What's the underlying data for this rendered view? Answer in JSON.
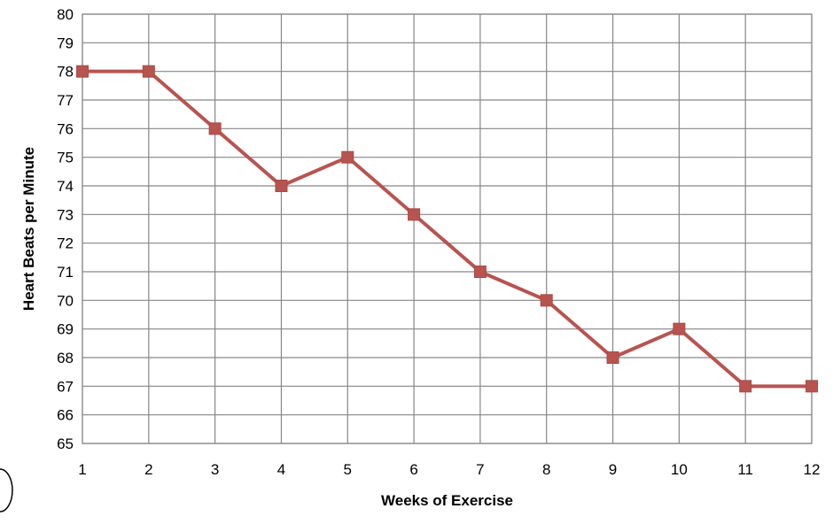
{
  "chart_data": {
    "type": "line",
    "title": "",
    "xlabel": "Weeks of Exercise",
    "ylabel": "Heart Beats per Minute",
    "x": [
      1,
      2,
      3,
      4,
      5,
      6,
      7,
      8,
      9,
      10,
      11,
      12
    ],
    "series": [
      {
        "values": [
          78,
          78,
          76,
          74,
          75,
          73,
          71,
          70,
          68,
          69,
          67,
          67
        ]
      }
    ],
    "xlim": [
      1,
      12
    ],
    "ylim": [
      65,
      80
    ],
    "yticks": [
      65,
      66,
      67,
      68,
      69,
      70,
      71,
      72,
      73,
      74,
      75,
      76,
      77,
      78,
      79,
      80
    ],
    "xticks": [
      1,
      2,
      3,
      4,
      5,
      6,
      7,
      8,
      9,
      10,
      11,
      12
    ],
    "grid": true,
    "legend": "none",
    "marker": "square",
    "colors": {
      "series": "#b85450",
      "marker": "#b85450",
      "grid": "#868686"
    }
  }
}
